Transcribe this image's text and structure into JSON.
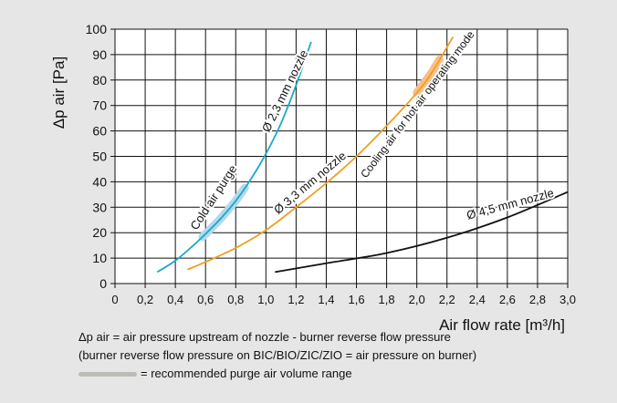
{
  "chart_data": {
    "type": "line",
    "title": "",
    "xlabel": "Air flow rate [m³/h]",
    "ylabel": "Δp air [Pa]",
    "xlim": [
      0,
      3.0
    ],
    "ylim": [
      0,
      100
    ],
    "x_ticks": [
      "0",
      "0,2",
      "0,4",
      "0,6",
      "0,8",
      "1,0",
      "1,2",
      "1,4",
      "1,6",
      "1,8",
      "2,0",
      "2,2",
      "2,4",
      "2,6",
      "2,8",
      "3,0"
    ],
    "y_ticks": [
      "0",
      "10",
      "20",
      "30",
      "40",
      "50",
      "60",
      "70",
      "80",
      "90",
      "100"
    ],
    "grid": true,
    "series": [
      {
        "name": "Ø 2,3 mm nozzle",
        "color": "#1aa8c8",
        "x": [
          0.28,
          0.4,
          0.5,
          0.6,
          0.7,
          0.8,
          0.9,
          1.0,
          1.1,
          1.2,
          1.3
        ],
        "y": [
          4.5,
          9,
          14,
          19.5,
          25.5,
          32.5,
          41,
          51,
          63,
          78,
          95
        ],
        "highlight": {
          "label": "Cold air purge",
          "x_range": [
            0.58,
            0.86
          ],
          "color": "#b3d9ee"
        }
      },
      {
        "name": "Ø 3,3 mm nozzle",
        "color": "#f0a020",
        "x": [
          0.48,
          0.6,
          0.8,
          1.0,
          1.2,
          1.4,
          1.6,
          1.8,
          2.0,
          2.1,
          2.24
        ],
        "y": [
          5.5,
          8.5,
          14,
          21,
          30,
          39.5,
          50,
          62,
          75,
          83,
          97
        ],
        "highlight": {
          "label": "Cooling air for hot air operating mode",
          "x_range": [
            2.0,
            2.15
          ],
          "color": "#f5c089"
        }
      },
      {
        "name": "Ø 4,5 mm nozzle",
        "color": "#111111",
        "x": [
          1.06,
          1.4,
          1.8,
          2.2,
          2.6,
          3.0
        ],
        "y": [
          4.5,
          8,
          12,
          18,
          26,
          36
        ]
      }
    ]
  },
  "notes": {
    "line1": "Δp air = air pressure upstream of nozzle - burner reverse flow pressure",
    "line2": "(burner reverse flow pressure on BIC/BIO/ZIC/ZIO = air pressure on burner)",
    "legend": "= recommended purge air volume range"
  }
}
